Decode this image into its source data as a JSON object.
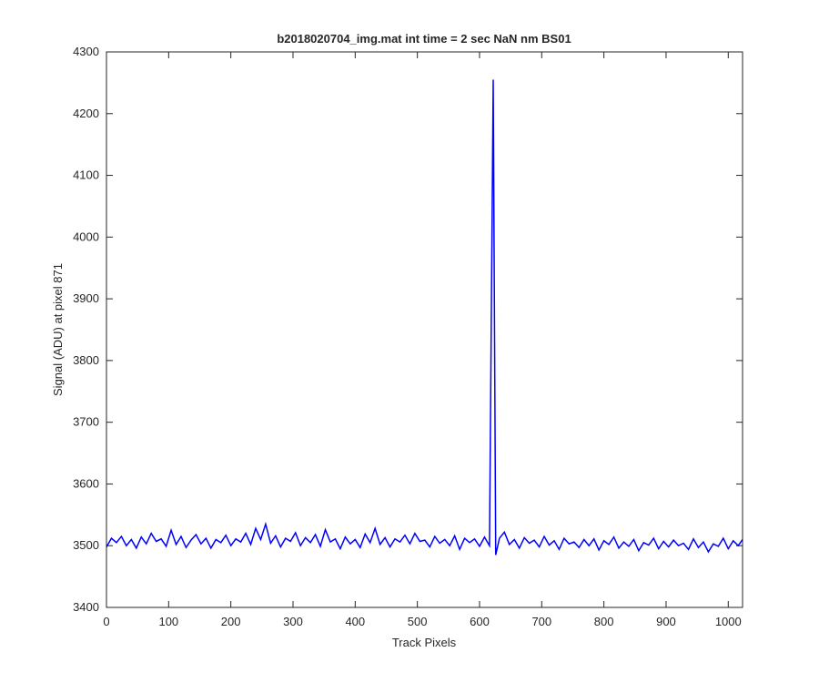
{
  "chart_data": {
    "type": "line",
    "title": "b2018020704_img.mat int time = 2 sec  NaN nm BS01",
    "x_label": "Track Pixels",
    "y_label": "Signal (ADU) at pixel 871",
    "x": [
      0,
      8,
      16,
      24,
      32,
      40,
      48,
      56,
      64,
      72,
      80,
      88,
      96,
      104,
      112,
      120,
      128,
      136,
      144,
      152,
      160,
      168,
      176,
      184,
      192,
      200,
      208,
      216,
      224,
      232,
      240,
      248,
      256,
      264,
      272,
      280,
      288,
      296,
      304,
      312,
      320,
      328,
      336,
      344,
      352,
      360,
      368,
      376,
      384,
      392,
      400,
      408,
      416,
      424,
      432,
      440,
      448,
      456,
      464,
      472,
      480,
      488,
      496,
      504,
      512,
      520,
      528,
      536,
      544,
      552,
      560,
      568,
      576,
      584,
      592,
      600,
      608,
      616,
      622,
      626,
      632,
      640,
      648,
      656,
      664,
      672,
      680,
      688,
      696,
      704,
      712,
      720,
      728,
      736,
      744,
      752,
      760,
      768,
      776,
      784,
      792,
      800,
      808,
      816,
      824,
      832,
      840,
      848,
      856,
      864,
      872,
      880,
      888,
      896,
      904,
      912,
      920,
      928,
      936,
      944,
      952,
      960,
      968,
      976,
      984,
      992,
      1000,
      1008,
      1016,
      1023
    ],
    "series": [
      {
        "color": "#0000ff",
        "values": [
          3498,
          3512,
          3505,
          3515,
          3500,
          3510,
          3496,
          3514,
          3503,
          3520,
          3507,
          3511,
          3499,
          3525,
          3502,
          3515,
          3497,
          3509,
          3518,
          3503,
          3512,
          3496,
          3510,
          3505,
          3517,
          3500,
          3511,
          3506,
          3520,
          3502,
          3528,
          3510,
          3535,
          3504,
          3516,
          3498,
          3512,
          3507,
          3521,
          3500,
          3513,
          3505,
          3518,
          3499,
          3526,
          3506,
          3511,
          3495,
          3514,
          3503,
          3510,
          3497,
          3519,
          3505,
          3528,
          3502,
          3513,
          3498,
          3511,
          3506,
          3517,
          3503,
          3520,
          3507,
          3509,
          3498,
          3515,
          3504,
          3510,
          3500,
          3516,
          3494,
          3512,
          3505,
          3511,
          3499,
          3514,
          3500,
          4255,
          3485,
          3512,
          3522,
          3502,
          3510,
          3496,
          3513,
          3504,
          3509,
          3498,
          3515,
          3501,
          3508,
          3494,
          3512,
          3503,
          3506,
          3497,
          3510,
          3500,
          3511,
          3493,
          3508,
          3502,
          3514,
          3496,
          3506,
          3499,
          3510,
          3492,
          3505,
          3501,
          3512,
          3495,
          3507,
          3498,
          3509,
          3500,
          3504,
          3494,
          3511,
          3497,
          3506,
          3490,
          3503,
          3499,
          3512,
          3495,
          3508,
          3500,
          3510
        ]
      }
    ],
    "xlim": [
      0,
      1023
    ],
    "ylim": [
      3400,
      4300
    ],
    "xticks": [
      0,
      100,
      200,
      300,
      400,
      500,
      600,
      700,
      800,
      900,
      1000
    ],
    "yticks": [
      3400,
      3500,
      3600,
      3700,
      3800,
      3900,
      4000,
      4100,
      4200,
      4300
    ]
  }
}
